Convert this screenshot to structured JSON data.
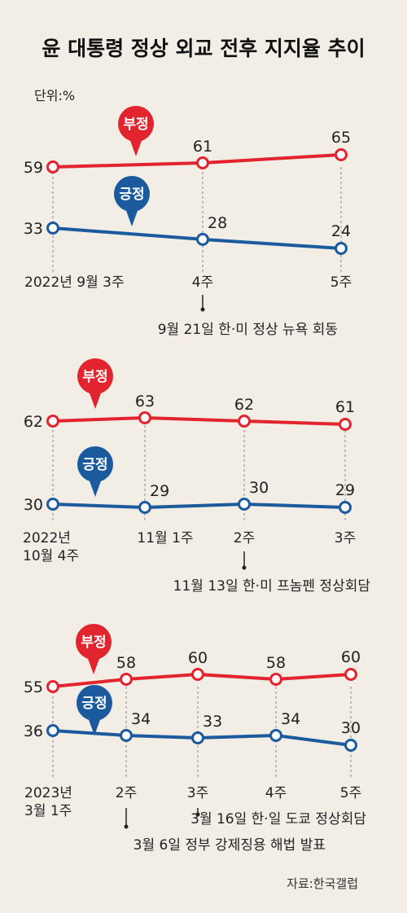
{
  "title": "윤 대통령 정상 외교 전후 지지율 추이",
  "unit": "단위:%",
  "source": "자료:한국갤럽",
  "colors": {
    "negative": "#e1242e",
    "positive": "#1c5a9e"
  },
  "chart_data": [
    {
      "type": "line",
      "categories": [
        "2022년 9월 3주",
        "4주",
        "5주"
      ],
      "series": [
        {
          "name": "부정",
          "values": [
            59,
            61,
            65
          ]
        },
        {
          "name": "긍정",
          "values": [
            33,
            28,
            24
          ]
        }
      ],
      "annotations": [
        "9월 21일 한·미 정상 뉴욕 회동"
      ]
    },
    {
      "type": "line",
      "categories": [
        "2022년 10월 4주",
        "11월 1주",
        "2주",
        "3주"
      ],
      "series": [
        {
          "name": "부정",
          "values": [
            62,
            63,
            62,
            61
          ]
        },
        {
          "name": "긍정",
          "values": [
            30,
            29,
            30,
            29
          ]
        }
      ],
      "annotations": [
        "11월 13일 한·미 프놈펜 정상회담"
      ]
    },
    {
      "type": "line",
      "categories": [
        "2023년 3월 1주",
        "2주",
        "3주",
        "4주",
        "5주"
      ],
      "series": [
        {
          "name": "부정",
          "values": [
            55,
            58,
            60,
            58,
            60
          ]
        },
        {
          "name": "긍정",
          "values": [
            36,
            34,
            33,
            34,
            30
          ]
        }
      ],
      "annotations": [
        "3월 16일 한·일 도쿄 정상회담",
        "3월 6일 정부 강제징용 해법 발표"
      ]
    }
  ]
}
